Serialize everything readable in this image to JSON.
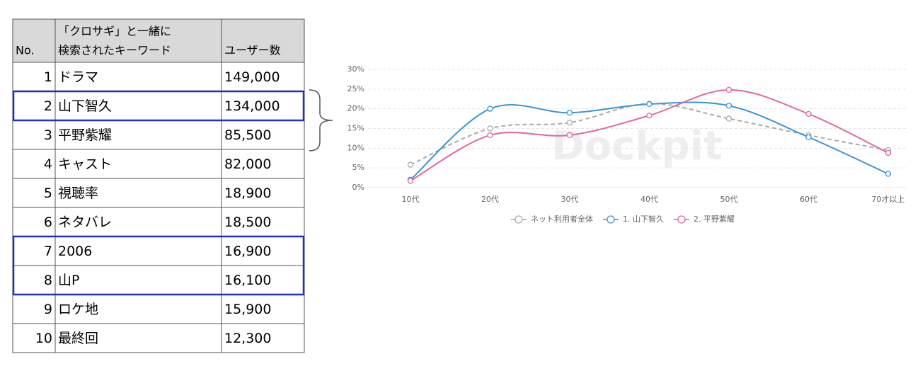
{
  "table": {
    "header": [
      "No.",
      [
        "「クロサギ」と一緒に",
        "検索されたキーワード"
      ],
      "ユーザー数"
    ],
    "rows": [
      [
        1,
        "ドラマ",
        "149,000"
      ],
      [
        2,
        "山下智久",
        "134,000"
      ],
      [
        3,
        "平野紫耀",
        "85,500"
      ],
      [
        4,
        "キャスト",
        "82,000"
      ],
      [
        5,
        "視聴率",
        "18,900"
      ],
      [
        6,
        "ネタバレ",
        "18,500"
      ],
      [
        7,
        "2006",
        "16,900"
      ],
      [
        8,
        "山P",
        "16,100"
      ],
      [
        9,
        "ロケ地",
        "15,900"
      ],
      [
        10,
        "最終回",
        "12,300"
      ]
    ]
  },
  "chart_data": {
    "type": "line",
    "watermark": "Dockpit",
    "categories": [
      "10代",
      "20代",
      "30代",
      "40代",
      "50代",
      "60代",
      "70才以上"
    ],
    "series": [
      {
        "name": "ネット利用者全体",
        "color": "#aaaaaa",
        "dashed": true,
        "values": [
          5.8,
          15,
          16.5,
          21.3,
          17.5,
          13.3,
          9.5
        ]
      },
      {
        "name": "1. 山下智久",
        "color": "#3b95d6",
        "values": [
          2,
          20,
          19,
          21.2,
          20.8,
          12.8,
          3.5
        ]
      },
      {
        "name": "2. 平野紫耀",
        "color": "#e066a6",
        "values": [
          1.7,
          13.3,
          13.3,
          18.3,
          24.8,
          18.7,
          8.8
        ]
      }
    ],
    "ylim": [
      0,
      30
    ],
    "yticks": [
      {
        "value": 0,
        "label": "0%"
      },
      {
        "value": 5,
        "label": "5%"
      },
      {
        "value": 10,
        "label": "10%"
      },
      {
        "value": 15,
        "label": "15%"
      },
      {
        "value": 20,
        "label": "20%"
      },
      {
        "value": 25,
        "label": "25%"
      },
      {
        "value": 30,
        "label": "30%"
      }
    ],
    "grid": true
  }
}
